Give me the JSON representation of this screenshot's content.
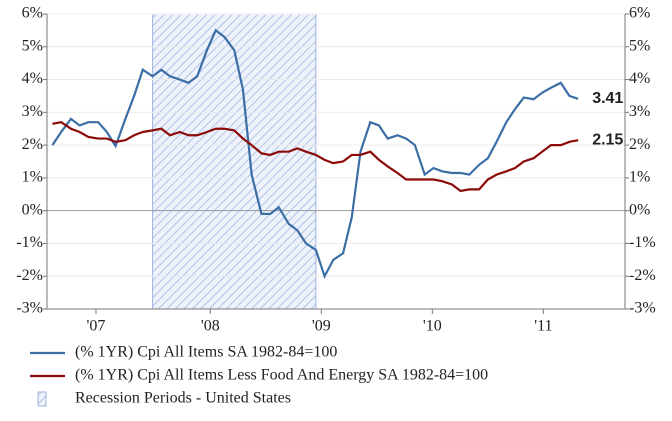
{
  "chart_data": {
    "type": "line",
    "x": [
      2007.0,
      2007.08,
      2007.17,
      2007.25,
      2007.33,
      2007.42,
      2007.5,
      2007.58,
      2007.67,
      2007.75,
      2007.83,
      2007.92,
      2008.0,
      2008.08,
      2008.17,
      2008.25,
      2008.33,
      2008.42,
      2008.5,
      2008.58,
      2008.67,
      2008.75,
      2008.83,
      2008.92,
      2009.0,
      2009.08,
      2009.17,
      2009.25,
      2009.33,
      2009.42,
      2009.5,
      2009.58,
      2009.67,
      2009.75,
      2009.83,
      2009.92,
      2010.0,
      2010.08,
      2010.17,
      2010.25,
      2010.33,
      2010.42,
      2010.5,
      2010.58,
      2010.67,
      2010.75,
      2010.83,
      2010.92,
      2011.0,
      2011.08,
      2011.17,
      2011.25,
      2011.33,
      2011.42,
      2011.5,
      2011.58,
      2011.67,
      2011.75,
      2011.83
    ],
    "series": [
      {
        "name": "(% 1YR) Cpi All Items SA 1982-84=100",
        "color": "#3b6ea5",
        "end_label": 3.41,
        "values": [
          2.0,
          2.4,
          2.8,
          2.6,
          2.7,
          2.7,
          2.4,
          1.97,
          2.8,
          3.5,
          4.3,
          4.1,
          4.3,
          4.1,
          4.0,
          3.9,
          4.1,
          4.9,
          5.5,
          5.3,
          4.9,
          3.7,
          1.1,
          -0.1,
          -0.1,
          0.1,
          -0.4,
          -0.6,
          -1.0,
          -1.2,
          -2.0,
          -1.5,
          -1.3,
          -0.2,
          1.8,
          2.7,
          2.6,
          2.2,
          2.3,
          2.2,
          2.0,
          1.1,
          1.3,
          1.2,
          1.15,
          1.15,
          1.1,
          1.4,
          1.6,
          2.1,
          2.7,
          3.1,
          3.45,
          3.4,
          3.6,
          3.75,
          3.9,
          3.5,
          3.41
        ]
      },
      {
        "name": "(% 1YR) Cpi All Items Less Food And Energy SA 1982-84=100",
        "color": "#8b0a0a",
        "end_label": 2.15,
        "values": [
          2.65,
          2.7,
          2.5,
          2.4,
          2.25,
          2.2,
          2.2,
          2.1,
          2.15,
          2.3,
          2.4,
          2.45,
          2.5,
          2.3,
          2.4,
          2.3,
          2.3,
          2.4,
          2.5,
          2.5,
          2.45,
          2.2,
          2.0,
          1.75,
          1.7,
          1.8,
          1.8,
          1.9,
          1.8,
          1.7,
          1.55,
          1.45,
          1.5,
          1.7,
          1.7,
          1.8,
          1.55,
          1.35,
          1.15,
          0.95,
          0.95,
          0.95,
          0.95,
          0.9,
          0.8,
          0.6,
          0.65,
          0.65,
          0.95,
          1.1,
          1.2,
          1.3,
          1.5,
          1.6,
          1.8,
          2.0,
          2.0,
          2.1,
          2.15
        ]
      }
    ],
    "bands": [
      {
        "name": "Recession Periods - United States",
        "color": "#9fb4e0",
        "start": 2007.92,
        "end": 2009.42
      }
    ],
    "xlim": [
      2006.95,
      2012.26
    ],
    "xticks": [
      {
        "value": 2007.4,
        "label": "'07"
      },
      {
        "value": 2008.45,
        "label": "'08"
      },
      {
        "value": 2009.47,
        "label": "'09"
      },
      {
        "value": 2010.49,
        "label": "'10"
      },
      {
        "value": 2011.51,
        "label": "'11"
      }
    ],
    "ylim": [
      -3,
      6
    ],
    "yticks": [
      {
        "value": -3,
        "label": "-3%"
      },
      {
        "value": -2,
        "label": "-2%"
      },
      {
        "value": -1,
        "label": "-1%"
      },
      {
        "value": 0,
        "label": "0%"
      },
      {
        "value": 1,
        "label": "1%"
      },
      {
        "value": 2,
        "label": "2%"
      },
      {
        "value": 3,
        "label": "3%"
      },
      {
        "value": 4,
        "label": "4%"
      },
      {
        "value": 5,
        "label": "5%"
      },
      {
        "value": 6,
        "label": "6%"
      }
    ],
    "y2lim": [
      -3,
      6
    ],
    "y2ticks": [
      {
        "value": -3,
        "label": "-3%"
      },
      {
        "value": -2,
        "label": "-2%"
      },
      {
        "value": -1,
        "label": "-1%"
      },
      {
        "value": 0,
        "label": "0%"
      },
      {
        "value": 1,
        "label": "1%"
      },
      {
        "value": 2,
        "label": "2%"
      },
      {
        "value": 3,
        "label": "3%"
      },
      {
        "value": 4,
        "label": "4%"
      },
      {
        "value": 5,
        "label": "5%"
      },
      {
        "value": 6,
        "label": "6%"
      }
    ],
    "grid": true
  }
}
